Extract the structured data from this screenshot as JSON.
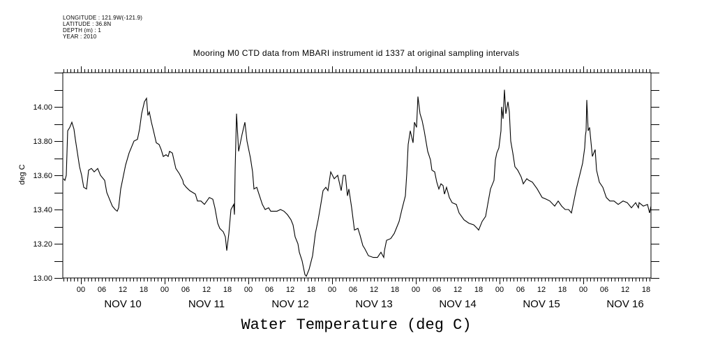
{
  "header": {
    "meta_lines": [
      "LONGITUDE : 121.9W(-121.9)",
      "LATITUDE : 36.8N",
      "DEPTH (m) : 1",
      "YEAR : 2010"
    ],
    "title": "Mooring M0 CTD data from MBARI instrument id 1337 at original sampling intervals"
  },
  "chart_data": {
    "type": "line",
    "title": "Mooring M0 CTD data from MBARI instrument id 1337 at original sampling intervals",
    "xlabel": "Water Temperature (deg C)",
    "ylabel": "deg C",
    "x_units": "hours since NOV 10 00:00 (2010)",
    "xlim": [
      -5.2,
      163.4
    ],
    "ylim": [
      13.0,
      14.2
    ],
    "y_ticks": [
      13.0,
      13.2,
      13.4,
      13.6,
      13.8,
      14.0
    ],
    "y_tick_labels": [
      "13.00",
      "13.20",
      "13.40",
      "13.60",
      "13.80",
      "14.00"
    ],
    "y_minor_step": 0.1,
    "x_hour_ticks": [
      0,
      6,
      12,
      18,
      24,
      30,
      36,
      42,
      48,
      54,
      60,
      66,
      72,
      78,
      84,
      90,
      96,
      102,
      108,
      114,
      120,
      126,
      132,
      138,
      144,
      150,
      156,
      162
    ],
    "x_hour_tick_labels": [
      "00",
      "06",
      "12",
      "18",
      "00",
      "06",
      "12",
      "18",
      "00",
      "06",
      "12",
      "18",
      "00",
      "06",
      "12",
      "18",
      "00",
      "06",
      "12",
      "18",
      "00",
      "06",
      "12",
      "18",
      "00",
      "06",
      "12",
      "18"
    ],
    "day_labels": [
      {
        "label": "NOV 10",
        "hour": 12
      },
      {
        "label": "NOV 11",
        "hour": 36
      },
      {
        "label": "NOV 12",
        "hour": 60
      },
      {
        "label": "NOV 13",
        "hour": 84
      },
      {
        "label": "NOV 14",
        "hour": 108
      },
      {
        "label": "NOV 15",
        "hour": 132
      },
      {
        "label": "NOV 16",
        "hour": 156
      }
    ],
    "grid": false,
    "series": [
      {
        "name": "Water Temperature",
        "color": "#000000",
        "points": [
          [
            -5.0,
            13.58
          ],
          [
            -4.6,
            13.57
          ],
          [
            -4.2,
            13.6
          ],
          [
            -3.8,
            13.86
          ],
          [
            -3.2,
            13.88
          ],
          [
            -2.6,
            13.91
          ],
          [
            -2.0,
            13.87
          ],
          [
            -1.6,
            13.81
          ],
          [
            -1.0,
            13.73
          ],
          [
            -0.4,
            13.65
          ],
          [
            0.2,
            13.6
          ],
          [
            0.8,
            13.53
          ],
          [
            1.6,
            13.52
          ],
          [
            2.2,
            13.63
          ],
          [
            3.0,
            13.64
          ],
          [
            3.8,
            13.62
          ],
          [
            4.8,
            13.64
          ],
          [
            5.6,
            13.6
          ],
          [
            6.4,
            13.58
          ],
          [
            6.8,
            13.57
          ],
          [
            7.4,
            13.5
          ],
          [
            8.2,
            13.46
          ],
          [
            9.0,
            13.42
          ],
          [
            9.8,
            13.4
          ],
          [
            10.4,
            13.39
          ],
          [
            10.8,
            13.41
          ],
          [
            11.4,
            13.52
          ],
          [
            12.2,
            13.6
          ],
          [
            12.8,
            13.66
          ],
          [
            13.8,
            13.73
          ],
          [
            14.4,
            13.76
          ],
          [
            15.2,
            13.8
          ],
          [
            16.2,
            13.81
          ],
          [
            16.8,
            13.87
          ],
          [
            17.4,
            13.96
          ],
          [
            18.2,
            14.03
          ],
          [
            18.8,
            14.05
          ],
          [
            19.2,
            13.95
          ],
          [
            19.6,
            13.97
          ],
          [
            20.2,
            13.91
          ],
          [
            20.8,
            13.86
          ],
          [
            21.6,
            13.79
          ],
          [
            22.4,
            13.78
          ],
          [
            23.0,
            13.75
          ],
          [
            23.6,
            13.71
          ],
          [
            24.4,
            13.72
          ],
          [
            25.0,
            13.71
          ],
          [
            25.4,
            13.74
          ],
          [
            26.2,
            13.73
          ],
          [
            27.2,
            13.64
          ],
          [
            28.2,
            13.61
          ],
          [
            29.2,
            13.57
          ],
          [
            29.4,
            13.55
          ],
          [
            30.2,
            13.53
          ],
          [
            31.2,
            13.51
          ],
          [
            32.8,
            13.49
          ],
          [
            33.4,
            13.45
          ],
          [
            34.4,
            13.45
          ],
          [
            35.4,
            13.43
          ],
          [
            36.8,
            13.47
          ],
          [
            37.8,
            13.46
          ],
          [
            38.4,
            13.41
          ],
          [
            39.2,
            13.32
          ],
          [
            39.8,
            13.29
          ],
          [
            40.8,
            13.27
          ],
          [
            41.4,
            13.24
          ],
          [
            41.8,
            13.16
          ],
          [
            42.4,
            13.26
          ],
          [
            43.0,
            13.4
          ],
          [
            43.8,
            13.43
          ],
          [
            44.0,
            13.37
          ],
          [
            44.2,
            13.63
          ],
          [
            44.6,
            13.96
          ],
          [
            45.2,
            13.74
          ],
          [
            46.2,
            13.84
          ],
          [
            47.0,
            13.91
          ],
          [
            47.6,
            13.8
          ],
          [
            48.2,
            13.74
          ],
          [
            48.6,
            13.7
          ],
          [
            49.2,
            13.62
          ],
          [
            49.6,
            13.52
          ],
          [
            50.4,
            13.53
          ],
          [
            51.2,
            13.48
          ],
          [
            52.0,
            13.43
          ],
          [
            52.8,
            13.4
          ],
          [
            53.8,
            13.41
          ],
          [
            54.4,
            13.39
          ],
          [
            56.2,
            13.39
          ],
          [
            57.2,
            13.4
          ],
          [
            58.2,
            13.39
          ],
          [
            59.2,
            13.37
          ],
          [
            60.2,
            13.34
          ],
          [
            60.8,
            13.31
          ],
          [
            61.4,
            13.24
          ],
          [
            62.2,
            13.2
          ],
          [
            62.6,
            13.15
          ],
          [
            63.4,
            13.1
          ],
          [
            64.2,
            13.02
          ],
          [
            64.6,
            13.01
          ],
          [
            65.4,
            13.05
          ],
          [
            66.4,
            13.13
          ],
          [
            67.2,
            13.26
          ],
          [
            68.0,
            13.34
          ],
          [
            68.6,
            13.41
          ],
          [
            69.4,
            13.51
          ],
          [
            70.2,
            13.53
          ],
          [
            70.8,
            13.51
          ],
          [
            71.6,
            13.62
          ],
          [
            72.6,
            13.58
          ],
          [
            73.6,
            13.6
          ],
          [
            74.6,
            13.51
          ],
          [
            75.2,
            13.6
          ],
          [
            75.8,
            13.6
          ],
          [
            76.4,
            13.48
          ],
          [
            76.8,
            13.52
          ],
          [
            77.6,
            13.41
          ],
          [
            78.4,
            13.28
          ],
          [
            79.4,
            13.29
          ],
          [
            80.0,
            13.25
          ],
          [
            80.8,
            13.19
          ],
          [
            81.4,
            13.17
          ],
          [
            82.4,
            13.13
          ],
          [
            83.8,
            13.12
          ],
          [
            85.0,
            13.12
          ],
          [
            86.0,
            13.15
          ],
          [
            86.8,
            13.12
          ],
          [
            87.0,
            13.16
          ],
          [
            87.6,
            13.22
          ],
          [
            88.8,
            13.23
          ],
          [
            89.8,
            13.26
          ],
          [
            90.4,
            13.29
          ],
          [
            91.2,
            13.33
          ],
          [
            92.0,
            13.4
          ],
          [
            93.0,
            13.48
          ],
          [
            93.4,
            13.61
          ],
          [
            93.8,
            13.78
          ],
          [
            94.4,
            13.86
          ],
          [
            95.2,
            13.79
          ],
          [
            95.6,
            13.91
          ],
          [
            96.2,
            13.88
          ],
          [
            96.6,
            14.06
          ],
          [
            97.2,
            13.96
          ],
          [
            97.8,
            13.92
          ],
          [
            98.4,
            13.86
          ],
          [
            99.4,
            13.74
          ],
          [
            100.2,
            13.69
          ],
          [
            100.6,
            13.63
          ],
          [
            101.4,
            13.62
          ],
          [
            102.0,
            13.56
          ],
          [
            102.6,
            13.52
          ],
          [
            103.2,
            13.55
          ],
          [
            103.8,
            13.54
          ],
          [
            104.2,
            13.49
          ],
          [
            104.8,
            13.53
          ],
          [
            105.6,
            13.47
          ],
          [
            106.4,
            13.44
          ],
          [
            107.6,
            13.43
          ],
          [
            108.4,
            13.38
          ],
          [
            109.8,
            13.34
          ],
          [
            111.2,
            13.32
          ],
          [
            112.6,
            13.31
          ],
          [
            113.6,
            13.29
          ],
          [
            114.0,
            13.28
          ],
          [
            115.0,
            13.33
          ],
          [
            116.0,
            13.36
          ],
          [
            116.6,
            13.43
          ],
          [
            117.4,
            13.52
          ],
          [
            118.4,
            13.57
          ],
          [
            118.8,
            13.69
          ],
          [
            119.2,
            13.73
          ],
          [
            119.8,
            13.76
          ],
          [
            120.4,
            13.86
          ],
          [
            120.6,
            14.0
          ],
          [
            121.0,
            13.93
          ],
          [
            121.4,
            14.1
          ],
          [
            121.8,
            13.96
          ],
          [
            122.4,
            14.03
          ],
          [
            122.8,
            13.97
          ],
          [
            123.2,
            13.8
          ],
          [
            123.8,
            13.73
          ],
          [
            124.4,
            13.65
          ],
          [
            125.2,
            13.63
          ],
          [
            126.2,
            13.59
          ],
          [
            126.8,
            13.55
          ],
          [
            127.8,
            13.58
          ],
          [
            128.4,
            13.57
          ],
          [
            129.4,
            13.56
          ],
          [
            130.8,
            13.52
          ],
          [
            132.2,
            13.47
          ],
          [
            133.4,
            13.46
          ],
          [
            134.4,
            13.45
          ],
          [
            135.8,
            13.42
          ],
          [
            136.8,
            13.45
          ],
          [
            137.8,
            13.42
          ],
          [
            138.8,
            13.4
          ],
          [
            139.8,
            13.4
          ],
          [
            140.6,
            13.38
          ],
          [
            141.4,
            13.46
          ],
          [
            142.0,
            13.52
          ],
          [
            142.6,
            13.57
          ],
          [
            143.8,
            13.67
          ],
          [
            144.4,
            13.76
          ],
          [
            144.6,
            13.83
          ],
          [
            144.8,
            13.86
          ],
          [
            145.0,
            14.04
          ],
          [
            145.4,
            13.86
          ],
          [
            145.8,
            13.88
          ],
          [
            146.6,
            13.71
          ],
          [
            147.4,
            13.75
          ],
          [
            147.8,
            13.63
          ],
          [
            148.6,
            13.56
          ],
          [
            149.6,
            13.53
          ],
          [
            150.6,
            13.47
          ],
          [
            151.6,
            13.45
          ],
          [
            152.8,
            13.45
          ],
          [
            154.0,
            13.43
          ],
          [
            155.4,
            13.45
          ],
          [
            156.6,
            13.44
          ],
          [
            157.8,
            13.41
          ],
          [
            159.0,
            13.44
          ],
          [
            159.8,
            13.41
          ],
          [
            160.0,
            13.44
          ],
          [
            161.2,
            13.42
          ],
          [
            162.4,
            13.43
          ],
          [
            163.0,
            13.38
          ],
          [
            163.4,
            13.42
          ]
        ]
      }
    ]
  }
}
